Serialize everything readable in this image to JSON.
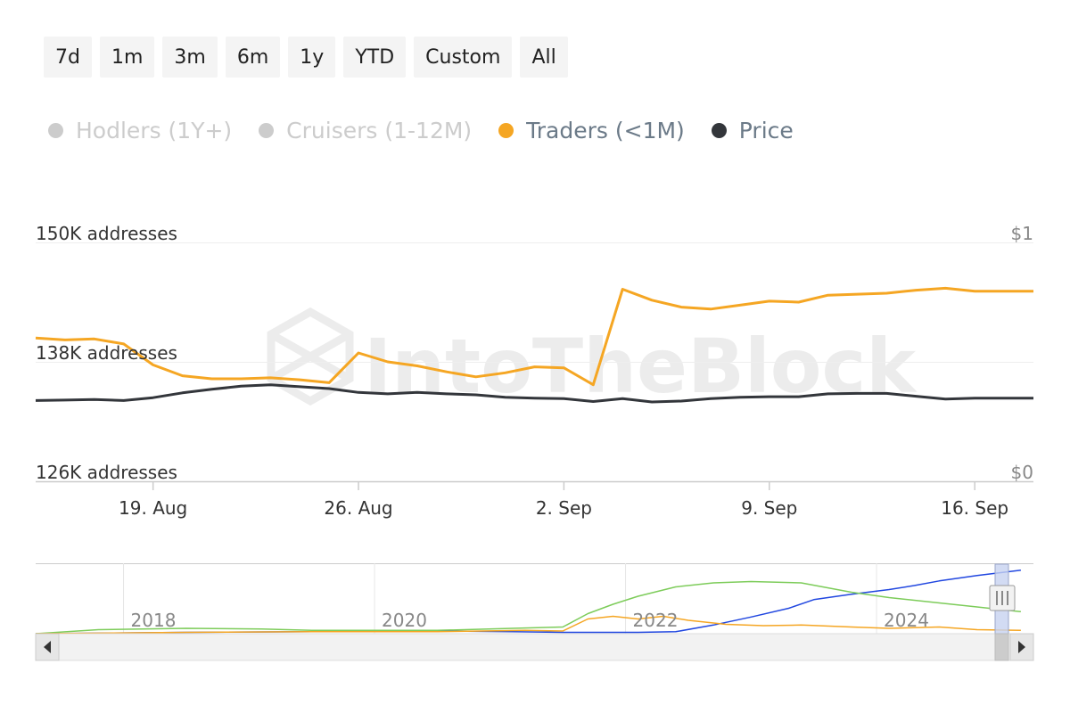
{
  "range_selector": {
    "buttons": [
      "7d",
      "1m",
      "3m",
      "6m",
      "1y",
      "YTD",
      "Custom",
      "All"
    ]
  },
  "legend": [
    {
      "label": "Hodlers (1Y+)",
      "color": "#cccccc",
      "visible": false
    },
    {
      "label": "Cruisers (1-12M)",
      "color": "#cccccc",
      "visible": false
    },
    {
      "label": "Traders (<1M)",
      "color": "#f5a623",
      "visible": true
    },
    {
      "label": "Price",
      "color": "#33363b",
      "visible": true
    }
  ],
  "watermark": "IntoTheBlock",
  "chart_data": {
    "type": "line",
    "y_left_ticks": [
      "150K addresses",
      "138K addresses",
      "126K addresses"
    ],
    "y_left_range": [
      126000,
      150000
    ],
    "y_right_ticks": [
      "$1",
      "$0"
    ],
    "y_right_range": [
      0,
      1
    ],
    "x_ticks": [
      "19. Aug",
      "26. Aug",
      "2. Sep",
      "9. Sep",
      "16. Sep"
    ],
    "x_tick_days": [
      19,
      26,
      33,
      40,
      47
    ],
    "x_range_days": [
      15.0,
      49.0
    ],
    "series": [
      {
        "name": "Traders (<1M)",
        "color": "#f5a623",
        "axis": "left",
        "x_days": [
          15,
          16,
          17,
          18,
          19,
          20,
          21,
          22,
          23,
          24,
          25,
          26,
          27,
          28,
          29,
          30,
          31,
          32,
          33,
          34,
          35,
          36,
          37,
          38,
          39,
          40,
          41,
          42,
          43,
          44,
          45,
          46,
          47,
          48,
          49
        ],
        "values": [
          140400,
          140200,
          140300,
          139800,
          137700,
          136600,
          136300,
          136300,
          136400,
          136200,
          135900,
          138900,
          138000,
          137600,
          137000,
          136500,
          136900,
          137500,
          137400,
          135700,
          145300,
          144200,
          143500,
          143300,
          143700,
          144100,
          144000,
          144700,
          144800,
          144900,
          145200,
          145400,
          145100,
          145100,
          145100
        ]
      },
      {
        "name": "Price",
        "color": "#33363b",
        "axis": "right",
        "x_days": [
          15,
          16,
          17,
          18,
          19,
          20,
          21,
          22,
          23,
          24,
          25,
          26,
          27,
          28,
          29,
          30,
          31,
          32,
          33,
          34,
          35,
          36,
          37,
          38,
          39,
          40,
          41,
          42,
          43,
          44,
          45,
          46,
          47,
          48,
          49
        ],
        "values": [
          0.338,
          0.34,
          0.342,
          0.338,
          0.35,
          0.37,
          0.385,
          0.398,
          0.404,
          0.396,
          0.388,
          0.372,
          0.366,
          0.372,
          0.366,
          0.362,
          0.352,
          0.348,
          0.346,
          0.334,
          0.346,
          0.332,
          0.336,
          0.346,
          0.352,
          0.354,
          0.354,
          0.366,
          0.368,
          0.368,
          0.356,
          0.344,
          0.348,
          0.348,
          0.348
        ]
      }
    ],
    "navigator": {
      "x_ticks": [
        "2018",
        "2020",
        "2022",
        "2024"
      ],
      "x_tick_years": [
        2017.5,
        2019.5,
        2021.5,
        2023.5
      ],
      "x_range_years": [
        2016.8,
        2024.75
      ],
      "series": [
        {
          "color": "#2147e0",
          "x_years": [
            2016.8,
            2018.0,
            2019.0,
            2020.0,
            2020.6,
            2021.0,
            2021.6,
            2021.9,
            2022.2,
            2022.5,
            2022.8,
            2023.0,
            2023.3,
            2023.6,
            2023.8,
            2024.0,
            2024.3,
            2024.65
          ],
          "values": [
            0.0,
            0.02,
            0.03,
            0.04,
            0.03,
            0.02,
            0.02,
            0.03,
            0.13,
            0.25,
            0.38,
            0.51,
            0.59,
            0.66,
            0.72,
            0.79,
            0.87,
            0.95
          ]
        },
        {
          "color": "#7dcc5a",
          "x_years": [
            2016.8,
            2017.3,
            2018.0,
            2018.6,
            2019.0,
            2020.0,
            2020.6,
            2021.0,
            2021.2,
            2021.4,
            2021.6,
            2021.9,
            2022.2,
            2022.5,
            2022.9,
            2023.3,
            2023.6,
            2024.0,
            2024.3,
            2024.65
          ],
          "values": [
            0.0,
            0.06,
            0.08,
            0.07,
            0.05,
            0.05,
            0.08,
            0.1,
            0.3,
            0.44,
            0.56,
            0.7,
            0.76,
            0.78,
            0.76,
            0.62,
            0.54,
            0.46,
            0.4,
            0.33
          ]
        },
        {
          "color": "#f5a623",
          "x_years": [
            2016.8,
            2018.0,
            2019.0,
            2020.0,
            2020.7,
            2021.0,
            2021.2,
            2021.4,
            2021.6,
            2021.8,
            2022.0,
            2022.3,
            2022.6,
            2022.9,
            2023.3,
            2023.6,
            2024.0,
            2024.3,
            2024.65
          ],
          "values": [
            0.0,
            0.02,
            0.03,
            0.03,
            0.05,
            0.04,
            0.22,
            0.26,
            0.22,
            0.26,
            0.2,
            0.14,
            0.12,
            0.13,
            0.1,
            0.08,
            0.1,
            0.06,
            0.05
          ]
        }
      ]
    }
  }
}
